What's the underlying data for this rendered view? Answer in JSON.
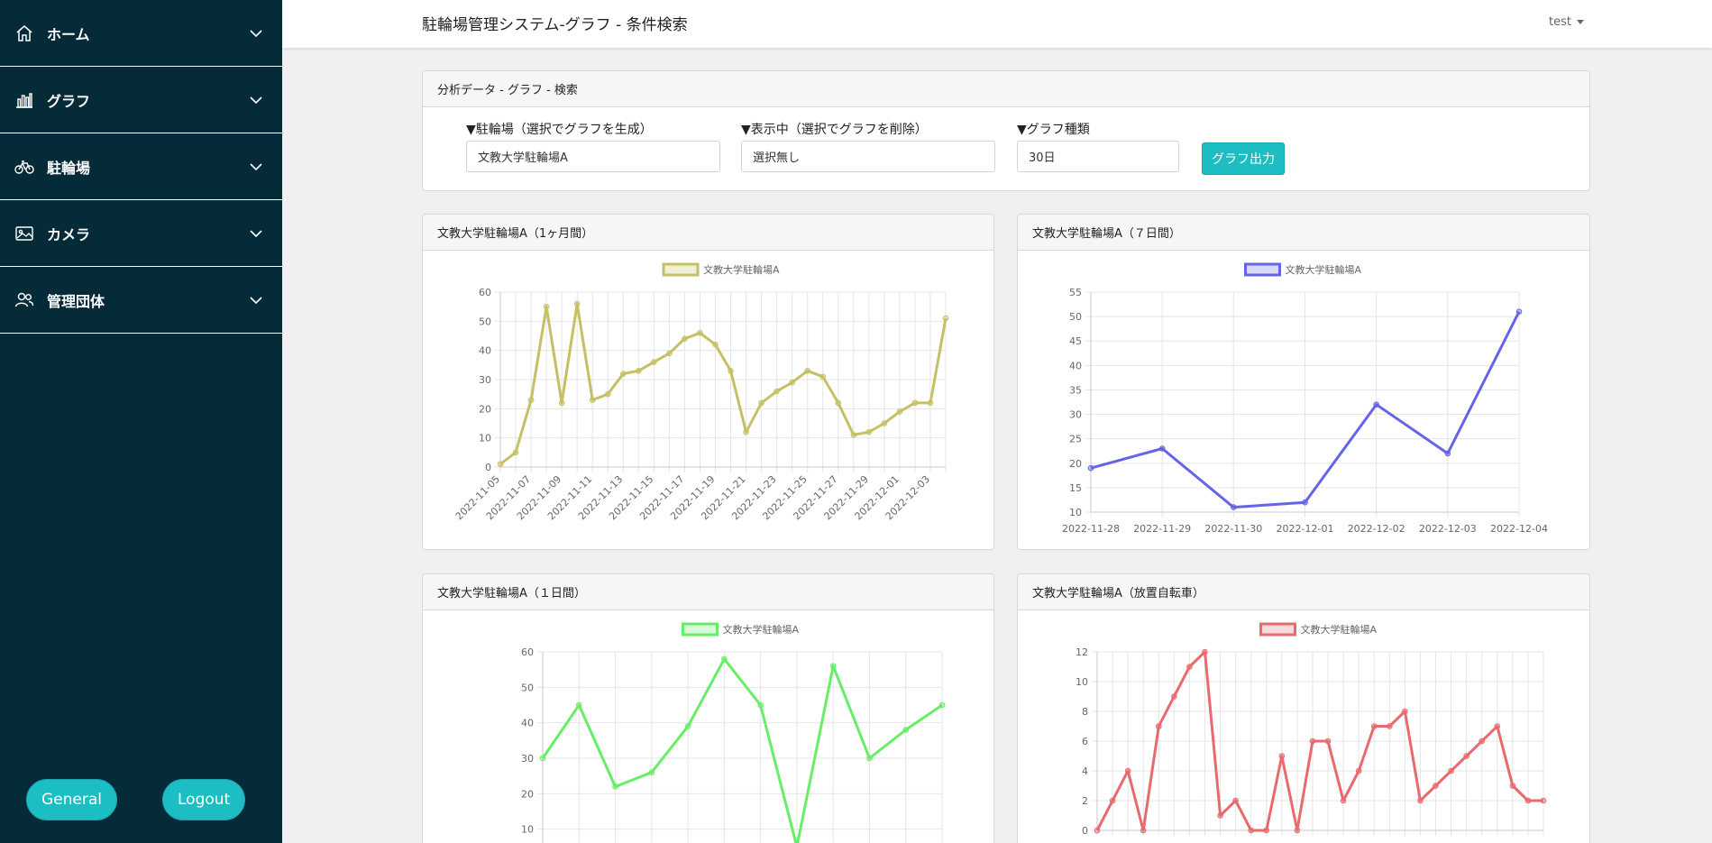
{
  "sidebar": {
    "items": [
      {
        "label": "ホーム",
        "icon": "home-icon"
      },
      {
        "label": "グラフ",
        "icon": "bar-chart-icon"
      },
      {
        "label": "駐輪場",
        "icon": "bicycle-icon"
      },
      {
        "label": "カメラ",
        "icon": "image-icon"
      },
      {
        "label": "管理団体",
        "icon": "people-icon"
      }
    ],
    "general_label": "General",
    "logout_label": "Logout"
  },
  "header": {
    "title": "駐輪場管理システム-グラフ - 条件検索",
    "user": "test"
  },
  "search": {
    "header": "分析データ - グラフ - 検索",
    "parking_label": "▼駐輪場（選択でグラフを生成）",
    "parking_value": "文教大学駐輪場A",
    "showing_label": "▼表示中（選択でグラフを削除）",
    "showing_value": "選択無し",
    "type_label": "▼グラフ種類",
    "type_value": "30日",
    "button_label": "グラフ出力"
  },
  "charts": [
    {
      "header": "文教大学駐輪場A（1ヶ月間）"
    },
    {
      "header": "文教大学駐輪場A（７日間）"
    },
    {
      "header": "文教大学駐輪場A（１日間）"
    },
    {
      "header": "文教大学駐輪場A（放置自転車）"
    }
  ],
  "chart_data": [
    {
      "type": "line",
      "legend": "文教大学駐輪場A",
      "color": "#c5c065",
      "ylim": [
        0,
        60
      ],
      "yticks": [
        0,
        10,
        20,
        30,
        40,
        50,
        60
      ],
      "x": [
        "2022-11-05",
        "2022-11-06",
        "2022-11-07",
        "2022-11-08",
        "2022-11-09",
        "2022-11-10",
        "2022-11-11",
        "2022-11-12",
        "2022-11-13",
        "2022-11-14",
        "2022-11-15",
        "2022-11-16",
        "2022-11-17",
        "2022-11-18",
        "2022-11-19",
        "2022-11-20",
        "2022-11-21",
        "2022-11-22",
        "2022-11-23",
        "2022-11-24",
        "2022-11-25",
        "2022-11-26",
        "2022-11-27",
        "2022-11-28",
        "2022-11-29",
        "2022-11-30",
        "2022-12-01",
        "2022-12-02",
        "2022-12-03",
        "2022-12-04"
      ],
      "xticks": [
        "2022-11-05",
        "2022-11-07",
        "2022-11-09",
        "2022-11-11",
        "2022-11-13",
        "2022-11-15",
        "2022-11-17",
        "2022-11-19",
        "2022-11-21",
        "2022-11-23",
        "2022-11-25",
        "2022-11-27",
        "2022-11-29",
        "2022-12-01",
        "2022-12-03"
      ],
      "values": [
        1,
        5,
        23,
        55,
        22,
        56,
        23,
        25,
        32,
        33,
        36,
        39,
        44,
        46,
        42,
        33,
        12,
        22,
        26,
        29,
        33,
        31,
        22,
        11,
        12,
        15,
        19,
        22,
        22,
        51
      ]
    },
    {
      "type": "line",
      "legend": "文教大学駐輪場A",
      "color": "#6464e6",
      "ylim": [
        10,
        55
      ],
      "yticks": [
        10,
        15,
        20,
        25,
        30,
        35,
        40,
        45,
        50,
        55
      ],
      "x": [
        "2022-11-28",
        "2022-11-29",
        "2022-11-30",
        "2022-12-01",
        "2022-12-02",
        "2022-12-03",
        "2022-12-04"
      ],
      "xticks": [
        "2022-11-28",
        "2022-11-29",
        "2022-11-30",
        "2022-12-01",
        "2022-12-02",
        "2022-12-03",
        "2022-12-04"
      ],
      "values": [
        19,
        23,
        11,
        12,
        32,
        22,
        51
      ]
    },
    {
      "type": "line",
      "legend": "文教大学駐輪場A",
      "color": "#66ee66",
      "ylim": [
        0,
        60
      ],
      "yticks": [
        0,
        10,
        20,
        30,
        40,
        50,
        60
      ],
      "values": [
        30,
        45,
        22,
        26,
        39,
        58,
        45,
        5,
        56,
        30,
        38,
        45
      ]
    },
    {
      "type": "line",
      "legend": "文教大学駐輪場A",
      "color": "#e86a6f",
      "ylim": [
        0,
        12
      ],
      "yticks": [
        0,
        2,
        4,
        6,
        8,
        10,
        12
      ],
      "values": [
        0,
        2,
        4,
        0,
        7,
        9,
        11,
        12,
        1,
        2,
        0,
        0,
        5,
        0,
        6,
        6,
        2,
        4,
        7,
        7,
        8,
        2,
        3,
        4,
        5,
        6,
        7,
        3,
        2,
        2
      ]
    }
  ]
}
